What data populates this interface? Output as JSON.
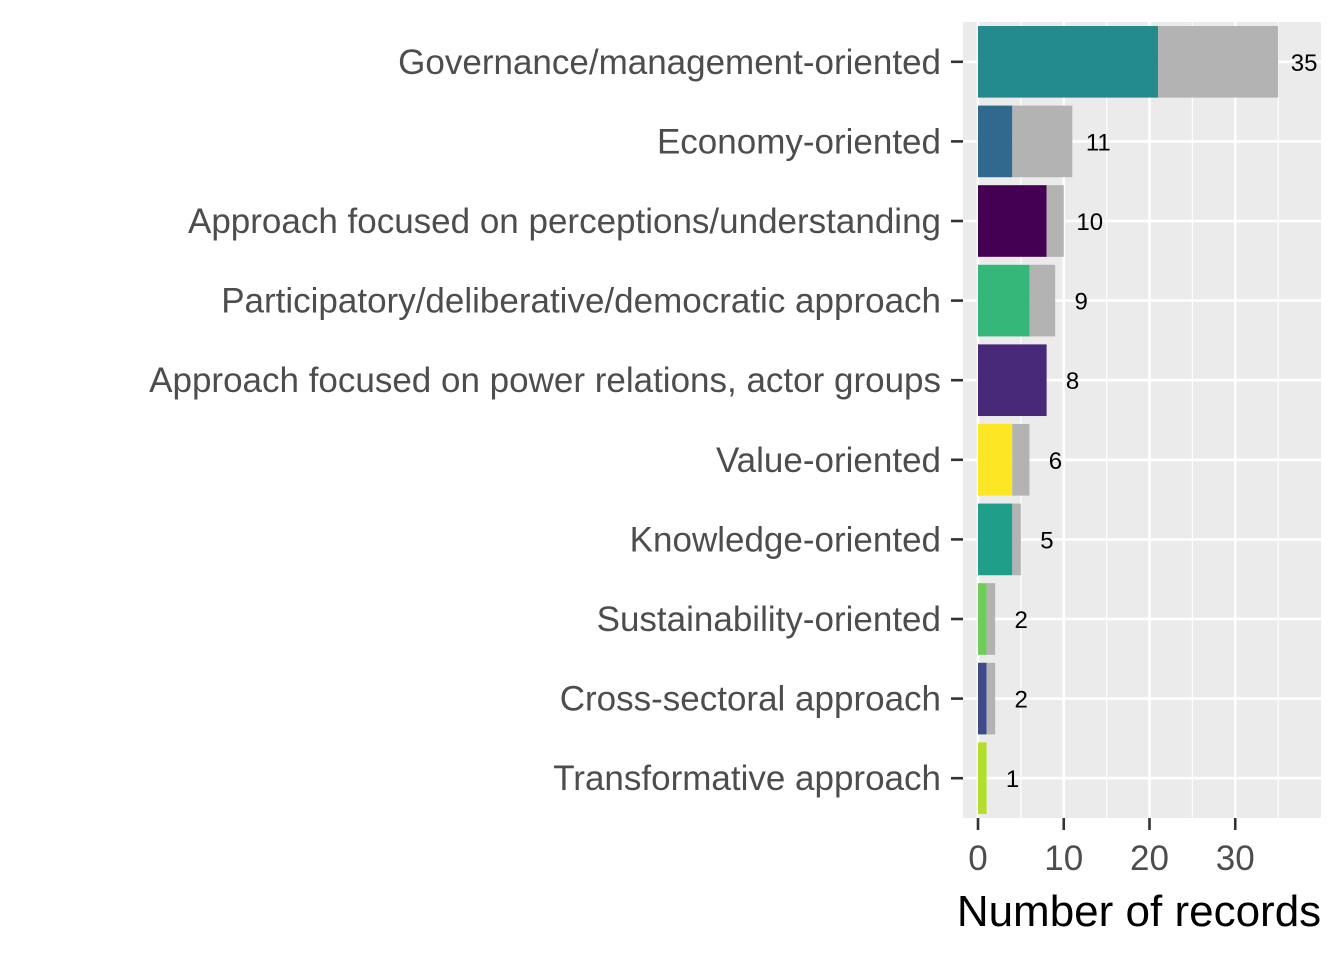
{
  "chart_data": {
    "type": "bar",
    "orientation": "horizontal",
    "stacked": true,
    "categories": [
      "Governance/management-oriented",
      "Economy-oriented",
      "Approach focused on perceptions/understanding",
      "Participatory/deliberative/democratic approach",
      "Approach focused on power relations, actor groups",
      "Value-oriented",
      "Knowledge-oriented",
      "Sustainability-oriented",
      "Cross-sectoral approach",
      "Transformative approach"
    ],
    "colors": [
      "#238A8D",
      "#31688E",
      "#440154",
      "#35B779",
      "#482878",
      "#FDE725",
      "#1F9E89",
      "#6DCD59",
      "#3E4A89",
      "#B4DE2C"
    ],
    "remainder_color": "#B3B3B3",
    "series": [
      {
        "values": [
          21,
          4,
          8,
          6,
          8,
          4,
          4,
          1,
          1,
          1
        ]
      },
      {
        "values": [
          14,
          7,
          2,
          3,
          0,
          2,
          1,
          1,
          1,
          0
        ]
      }
    ],
    "totals": [
      35,
      11,
      10,
      9,
      8,
      6,
      5,
      2,
      2,
      1
    ],
    "total_labels": [
      "35",
      "11",
      "10",
      "9",
      "8",
      "6",
      "5",
      "2",
      "2",
      "1"
    ],
    "xlabel": "Number of records",
    "ylabel": "",
    "xlim": [
      -1.75,
      40
    ],
    "xticks": [
      0,
      10,
      20,
      30
    ],
    "xtick_labels": [
      "0",
      "10",
      "20",
      "30"
    ],
    "grid": true,
    "legend": "none"
  }
}
